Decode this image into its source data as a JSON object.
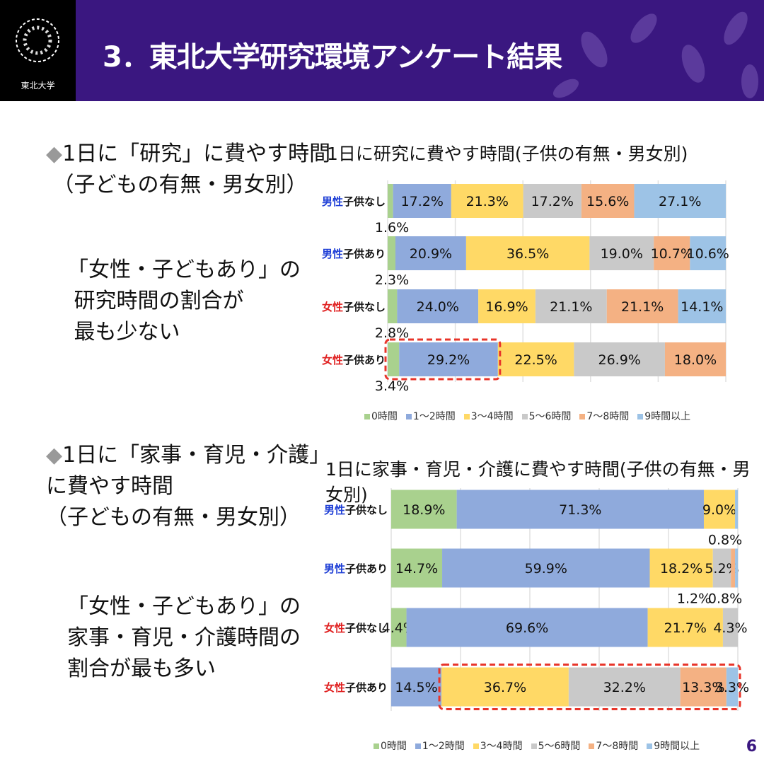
{
  "header": {
    "title": "3．東北大学研究環境アンケート結果",
    "logo_text": "東北大学"
  },
  "left": {
    "block1": {
      "bullet": "◆",
      "heading": "1日に「研究」に費やす時間\n （子どもの有無・男女別）",
      "note": "「女性・子どもあり」の\n 研究時間の割合が\n 最も少ない"
    },
    "block2": {
      "bullet": "◆",
      "heading": "1日に「家事・育児・介護」\nに費やす時間\n（子どもの有無・男女別）",
      "note": "「女性・子どもあり」の\n家事・育児・介護時間の\n割合が最も多い"
    }
  },
  "page_number": "6",
  "colors": {
    "男性": "#1f3fd6",
    "女性": "#e02020",
    "highlight": "#e8352a"
  },
  "chart_data": [
    {
      "type": "bar",
      "orientation": "horizontal",
      "stacked": "percent",
      "title": "1日に研究に費やす時間(子供の有無・男女別)",
      "categories": [
        {
          "prefix": "男性",
          "suffix": "子供なし"
        },
        {
          "prefix": "男性",
          "suffix": "子供あり"
        },
        {
          "prefix": "女性",
          "suffix": "子供なし"
        },
        {
          "prefix": "女性",
          "suffix": "子供あり"
        }
      ],
      "xlim": [
        0,
        100
      ],
      "grid": true,
      "legend": "bottom",
      "highlight": {
        "row": 3,
        "from": 0,
        "to": 1
      },
      "series": [
        {
          "name": "0時間",
          "color": "#a9d18e",
          "values": [
            1.6,
            2.3,
            2.8,
            3.4
          ]
        },
        {
          "name": "1～2時間",
          "color": "#8faadc",
          "values": [
            17.2,
            20.9,
            24.0,
            29.2
          ]
        },
        {
          "name": "3～4時間",
          "color": "#ffd966",
          "values": [
            21.3,
            36.5,
            16.9,
            22.5
          ]
        },
        {
          "name": "5～6時間",
          "color": "#c9c9c9",
          "values": [
            17.2,
            19.0,
            21.1,
            26.9
          ]
        },
        {
          "name": "7～8時間",
          "color": "#f4b183",
          "values": [
            15.6,
            10.7,
            21.1,
            18.0
          ]
        },
        {
          "name": "9時間以上",
          "color": "#9dc3e6",
          "values": [
            27.1,
            10.6,
            14.1,
            0
          ]
        }
      ]
    },
    {
      "type": "bar",
      "orientation": "horizontal",
      "stacked": "percent",
      "title": "1日に家事・育児・介護に費やす時間(子供の有無・男女別)",
      "categories": [
        {
          "prefix": "男性",
          "suffix": "子供なし"
        },
        {
          "prefix": "男性",
          "suffix": "子供あり"
        },
        {
          "prefix": "女性",
          "suffix": "子供なし"
        },
        {
          "prefix": "女性",
          "suffix": "子供あり"
        }
      ],
      "xlim": [
        0,
        100
      ],
      "grid": true,
      "legend": "bottom",
      "highlight": {
        "row": 3,
        "from": 2,
        "to": 5
      },
      "series": [
        {
          "name": "0時間",
          "color": "#a9d18e",
          "values": [
            18.9,
            14.7,
            4.4,
            0
          ]
        },
        {
          "name": "1～2時間",
          "color": "#8faadc",
          "values": [
            71.3,
            59.9,
            69.6,
            14.5
          ]
        },
        {
          "name": "3～4時間",
          "color": "#ffd966",
          "values": [
            9.0,
            18.2,
            21.7,
            36.7
          ]
        },
        {
          "name": "5～6時間",
          "color": "#c9c9c9",
          "values": [
            0,
            5.2,
            4.3,
            32.2
          ]
        },
        {
          "name": "7～8時間",
          "color": "#f4b183",
          "values": [
            0,
            1.2,
            0,
            13.3
          ]
        },
        {
          "name": "9時間以上",
          "color": "#9dc3e6",
          "values": [
            0.8,
            0.8,
            0,
            3.3
          ]
        }
      ]
    }
  ]
}
